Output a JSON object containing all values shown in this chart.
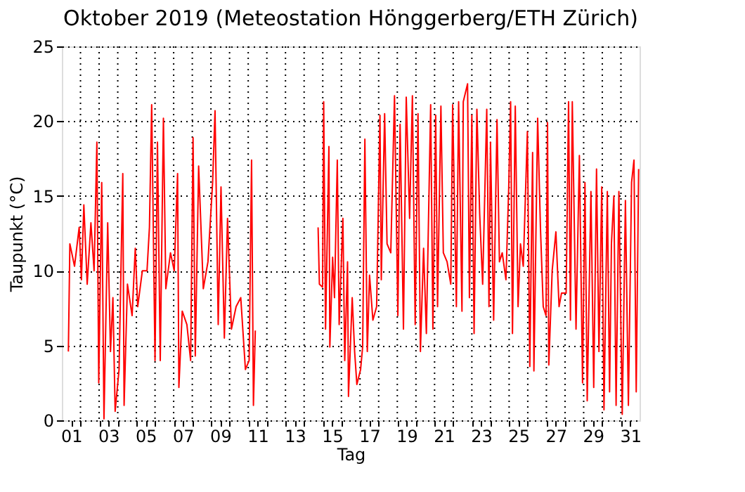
{
  "chart_data": {
    "type": "line",
    "title": "Oktober 2019  (Meteostation Hönggerberg/ETH Zürich)",
    "xlabel": "Tag",
    "ylabel": "Taupunkt (°C)",
    "x": [
      1.35,
      1.43,
      1.68,
      1.93,
      2.05,
      2.18,
      2.36,
      2.56,
      2.73,
      2.88,
      2.98,
      3.14,
      3.26,
      3.46,
      3.61,
      3.74,
      3.86,
      4.07,
      4.27,
      4.34,
      4.52,
      4.77,
      4.94,
      5.07,
      5.32,
      5.57,
      5.7,
      5.82,
      6.0,
      6.13,
      6.28,
      6.45,
      6.58,
      6.83,
      7.03,
      7.21,
      7.28,
      7.46,
      7.71,
      7.91,
      8.04,
      8.16,
      8.34,
      8.59,
      8.84,
      9.09,
      9.22,
      9.39,
      9.54,
      9.72,
      9.89,
      10.1,
      10.35,
      10.6,
      10.85,
      11.05,
      11.18,
      11.28,
      11.38,
      12.5,
      14.75,
      14.82,
      14.99,
      15.05,
      15.15,
      15.33,
      15.38,
      15.53,
      15.63,
      15.78,
      15.88,
      16.08,
      16.18,
      16.33,
      16.38,
      16.58,
      16.71,
      16.83,
      17.03,
      17.14,
      17.26,
      17.39,
      17.51,
      17.69,
      17.89,
      18.07,
      18.14,
      18.32,
      18.45,
      18.65,
      18.85,
      19.03,
      19.15,
      19.33,
      19.48,
      19.66,
      19.81,
      19.96,
      20.11,
      20.24,
      20.41,
      20.56,
      20.79,
      20.91,
      21.06,
      21.16,
      21.34,
      21.47,
      21.67,
      21.87,
      21.97,
      22.17,
      22.29,
      22.47,
      22.54,
      22.77,
      22.87,
      23.0,
      23.12,
      23.27,
      23.42,
      23.58,
      23.8,
      23.92,
      24.0,
      24.17,
      24.35,
      24.48,
      24.63,
      24.83,
      24.98,
      25.08,
      25.18,
      25.33,
      25.48,
      25.61,
      25.76,
      25.98,
      26.11,
      26.26,
      26.33,
      26.53,
      26.68,
      26.83,
      26.98,
      27.06,
      27.13,
      27.31,
      27.51,
      27.68,
      27.81,
      28.06,
      28.19,
      28.29,
      28.39,
      28.59,
      28.77,
      28.94,
      29.07,
      29.19,
      29.39,
      29.54,
      29.69,
      29.82,
      29.97,
      30.09,
      30.27,
      30.39,
      30.49,
      30.62,
      30.74,
      30.89,
      31.07,
      31.24,
      31.4,
      31.57,
      31.7,
      31.82,
      31.95
    ],
    "series": [
      {
        "color": "#ff0000",
        "values": [
          4.6,
          11.8,
          10.3,
          12.9,
          9.4,
          14.4,
          9.1,
          13.2,
          10.0,
          18.6,
          2.5,
          15.9,
          0.1,
          13.2,
          4.6,
          8.2,
          0.6,
          3.4,
          16.5,
          1.0,
          9.1,
          7.0,
          11.5,
          7.6,
          10.0,
          10.0,
          12.9,
          21.1,
          4.0,
          18.6,
          4.0,
          20.2,
          8.8,
          11.2,
          10.0,
          16.5,
          2.2,
          7.3,
          6.4,
          4.0,
          18.9,
          4.3,
          17.0,
          8.8,
          10.6,
          15.9,
          20.7,
          6.4,
          15.6,
          5.5,
          13.5,
          6.1,
          7.6,
          8.2,
          3.4,
          4.0,
          17.4,
          1.0,
          6.0,
          null,
          12.9,
          9.1,
          8.9,
          21.3,
          6.1,
          18.3,
          4.9,
          10.9,
          8.2,
          17.4,
          6.4,
          13.5,
          4.0,
          10.6,
          1.6,
          8.2,
          4.6,
          2.4,
          3.4,
          4.9,
          18.8,
          4.6,
          9.7,
          6.7,
          7.6,
          20.4,
          9.4,
          20.5,
          11.8,
          11.2,
          21.7,
          7.0,
          19.8,
          6.1,
          21.6,
          13.5,
          21.7,
          6.4,
          20.5,
          4.6,
          11.5,
          5.8,
          21.1,
          6.1,
          20.4,
          7.6,
          21.0,
          11.2,
          10.6,
          9.1,
          21.1,
          7.6,
          21.3,
          7.3,
          21.3,
          22.5,
          8.2,
          20.4,
          5.8,
          20.8,
          13.8,
          9.1,
          20.8,
          7.6,
          18.6,
          6.7,
          20.1,
          10.6,
          11.2,
          9.4,
          15.6,
          21.3,
          5.8,
          21.0,
          7.6,
          11.8,
          10.3,
          19.3,
          3.6,
          17.9,
          3.3,
          20.2,
          12.9,
          7.6,
          7.0,
          19.9,
          3.7,
          10.0,
          12.6,
          7.6,
          8.5,
          8.5,
          21.3,
          6.7,
          21.3,
          6.1,
          17.7,
          2.5,
          15.9,
          1.3,
          15.3,
          2.2,
          16.8,
          4.6,
          15.6,
          0.7,
          15.3,
          1.9,
          11.8,
          15.0,
          1.0,
          15.3,
          0.4,
          14.7,
          1.0,
          15.9,
          17.4,
          1.9,
          16.8
        ]
      }
    ],
    "xlim": [
      1,
      32
    ],
    "xticks": [
      {
        "value": 1.5,
        "label": "01"
      },
      {
        "value": 2,
        "label": null
      },
      {
        "value": 3,
        "label": null
      },
      {
        "value": 3.5,
        "label": "03"
      },
      {
        "value": 4,
        "label": null
      },
      {
        "value": 5,
        "label": null
      },
      {
        "value": 5.5,
        "label": "05"
      },
      {
        "value": 6,
        "label": null
      },
      {
        "value": 7,
        "label": null
      },
      {
        "value": 7.5,
        "label": "07"
      },
      {
        "value": 8,
        "label": null
      },
      {
        "value": 9,
        "label": null
      },
      {
        "value": 9.5,
        "label": "09"
      },
      {
        "value": 10,
        "label": null
      },
      {
        "value": 11,
        "label": null
      },
      {
        "value": 11.5,
        "label": "11"
      },
      {
        "value": 12,
        "label": null
      },
      {
        "value": 13,
        "label": null
      },
      {
        "value": 13.5,
        "label": "13"
      },
      {
        "value": 14,
        "label": null
      },
      {
        "value": 15,
        "label": null
      },
      {
        "value": 15.5,
        "label": "15"
      },
      {
        "value": 16,
        "label": null
      },
      {
        "value": 17,
        "label": null
      },
      {
        "value": 17.5,
        "label": "17"
      },
      {
        "value": 18,
        "label": null
      },
      {
        "value": 19,
        "label": null
      },
      {
        "value": 19.5,
        "label": "19"
      },
      {
        "value": 20,
        "label": null
      },
      {
        "value": 21,
        "label": null
      },
      {
        "value": 21.5,
        "label": "21"
      },
      {
        "value": 22,
        "label": null
      },
      {
        "value": 23,
        "label": null
      },
      {
        "value": 23.5,
        "label": "23"
      },
      {
        "value": 24,
        "label": null
      },
      {
        "value": 25,
        "label": null
      },
      {
        "value": 25.5,
        "label": "25"
      },
      {
        "value": 26,
        "label": null
      },
      {
        "value": 27,
        "label": null
      },
      {
        "value": 27.5,
        "label": "27"
      },
      {
        "value": 28,
        "label": null
      },
      {
        "value": 29,
        "label": null
      },
      {
        "value": 29.5,
        "label": "29"
      },
      {
        "value": 30,
        "label": null
      },
      {
        "value": 31,
        "label": null
      },
      {
        "value": 31.5,
        "label": "31"
      }
    ],
    "ylim": [
      0,
      25
    ],
    "yticks": [
      0,
      5,
      10,
      15,
      20,
      25
    ],
    "grid": true,
    "line_style": "solid",
    "marker": "none"
  }
}
